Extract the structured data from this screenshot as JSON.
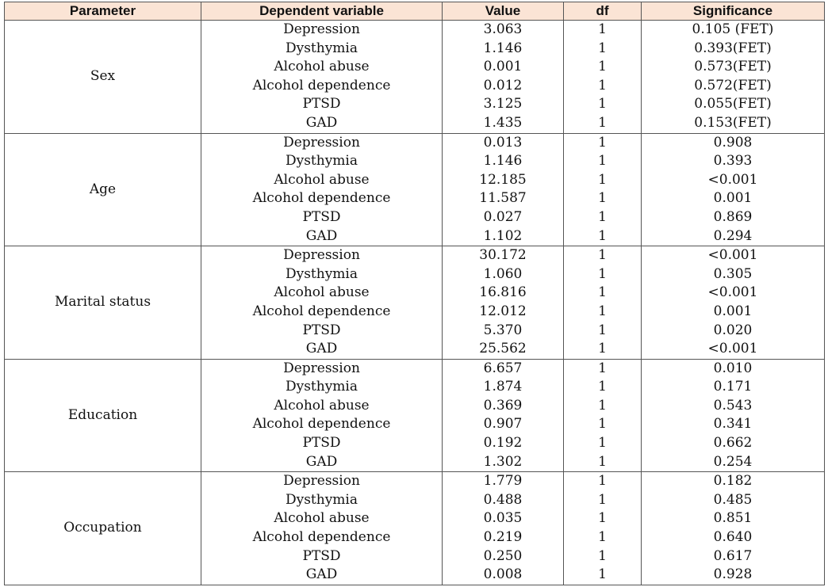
{
  "headers": [
    "Parameter",
    "Dependent variable",
    "Value",
    "df",
    "Significance"
  ],
  "groups": [
    {
      "parameter": "Sex",
      "rows": [
        [
          "Depression",
          "3.063",
          "1",
          "0.105 (FET)"
        ],
        [
          "Dysthymia",
          "1.146",
          "1",
          "0.393(FET)"
        ],
        [
          "Alcohol abuse",
          "0.001",
          "1",
          "0.573(FET)"
        ],
        [
          "Alcohol dependence",
          "0.012",
          "1",
          "0.572(FET)"
        ],
        [
          "PTSD",
          "3.125",
          "1",
          "0.055(FET)"
        ],
        [
          "GAD",
          "1.435",
          "1",
          "0.153(FET)"
        ]
      ]
    },
    {
      "parameter": "Age",
      "rows": [
        [
          "Depression",
          "0.013",
          "1",
          "0.908"
        ],
        [
          "Dysthymia",
          "1.146",
          "1",
          "0.393"
        ],
        [
          "Alcohol abuse",
          "12.185",
          "1",
          "<0.001"
        ],
        [
          "Alcohol dependence",
          "11.587",
          "1",
          "0.001"
        ],
        [
          "PTSD",
          "0.027",
          "1",
          "0.869"
        ],
        [
          "GAD",
          "1.102",
          "1",
          "0.294"
        ]
      ]
    },
    {
      "parameter": "Marital status",
      "rows": [
        [
          "Depression",
          "30.172",
          "1",
          "<0.001"
        ],
        [
          "Dysthymia",
          "1.060",
          "1",
          "0.305"
        ],
        [
          "Alcohol abuse",
          "16.816",
          "1",
          "<0.001"
        ],
        [
          "Alcohol dependence",
          "12.012",
          "1",
          "0.001"
        ],
        [
          "PTSD",
          "5.370",
          "1",
          "0.020"
        ],
        [
          "GAD",
          "25.562",
          "1",
          "<0.001"
        ]
      ]
    },
    {
      "parameter": "Education",
      "rows": [
        [
          "Depression",
          "6.657",
          "1",
          "0.010"
        ],
        [
          "Dysthymia",
          "1.874",
          "1",
          "0.171"
        ],
        [
          "Alcohol abuse",
          "0.369",
          "1",
          "0.543"
        ],
        [
          "Alcohol dependence",
          "0.907",
          "1",
          "0.341"
        ],
        [
          "PTSD",
          "0.192",
          "1",
          "0.662"
        ],
        [
          "GAD",
          "1.302",
          "1",
          "0.254"
        ]
      ]
    },
    {
      "parameter": "Occupation",
      "rows": [
        [
          "Depression",
          "1.779",
          "1",
          "0.182"
        ],
        [
          "Dysthymia",
          "0.488",
          "1",
          "0.485"
        ],
        [
          "Alcohol abuse",
          "0.035",
          "1",
          "0.851"
        ],
        [
          "Alcohol dependence",
          "0.219",
          "1",
          "0.640"
        ],
        [
          "PTSD",
          "0.250",
          "1",
          "0.617"
        ],
        [
          "GAD",
          "0.008",
          "1",
          "0.928"
        ]
      ]
    }
  ],
  "colors": {
    "header_bg": "#fbe4d5",
    "border": "#555555"
  }
}
